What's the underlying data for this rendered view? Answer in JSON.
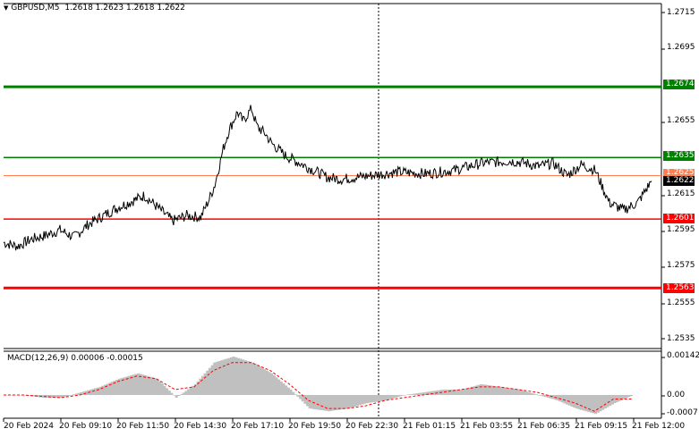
{
  "header": {
    "collapse_icon": "triangle-down-icon",
    "symbol": "GBPUSD,M5",
    "ohlc": "1.2618 1.2623 1.2618 1.2622"
  },
  "price_axis": {
    "ticks": [
      "1.2715",
      "1.2695",
      "1.2655",
      "1.2615",
      "1.2595",
      "1.2575",
      "1.2555",
      "1.2535"
    ],
    "partial_label": "1.2625"
  },
  "levels": {
    "l1": {
      "value": "1.2674",
      "color": "#008000"
    },
    "l2": {
      "value": "1.2635",
      "color": "#008000"
    },
    "l3": {
      "value": "1.2622",
      "color": "#000000"
    },
    "l4": {
      "value": "1.2601",
      "color": "#ff0000"
    },
    "l5": {
      "value": "1.2563",
      "color": "#ff0000"
    }
  },
  "macd": {
    "title": "MACD(12,26,9) 0.00006 -0.00015",
    "ticks": [
      "0.00142",
      "0.00",
      "-0.0007"
    ]
  },
  "time_axis": [
    "20 Feb 2024",
    "20 Feb 09:10",
    "20 Feb 11:50",
    "20 Feb 14:30",
    "20 Feb 17:10",
    "20 Feb 19:50",
    "20 Feb 22:30",
    "21 Feb 01:15",
    "21 Feb 03:55",
    "21 Feb 06:35",
    "21 Feb 09:15",
    "21 Feb 12:00"
  ],
  "chart_data": {
    "type": "line",
    "price": {
      "x_index": [
        0,
        5,
        10,
        15,
        20,
        25,
        30,
        40,
        50,
        60,
        65,
        70,
        73,
        75,
        78,
        80,
        83,
        85,
        88,
        90,
        93,
        95,
        100,
        110,
        115,
        120,
        130,
        140,
        150,
        160,
        170,
        180,
        185,
        190,
        195,
        200,
        205,
        210,
        215,
        220,
        225,
        230
      ],
      "close": [
        1.2588,
        1.2586,
        1.259,
        1.2592,
        1.2595,
        1.2591,
        1.2598,
        1.2607,
        1.2614,
        1.26,
        1.2603,
        1.2602,
        1.2612,
        1.262,
        1.264,
        1.265,
        1.266,
        1.2655,
        1.2662,
        1.2652,
        1.2648,
        1.2643,
        1.2636,
        1.2628,
        1.2624,
        1.2623,
        1.2625,
        1.2627,
        1.2626,
        1.2628,
        1.2632,
        1.2633,
        1.2632,
        1.263,
        1.2632,
        1.2625,
        1.2631,
        1.2628,
        1.261,
        1.2606,
        1.261,
        1.2622
      ]
    },
    "macd": {
      "histogram": [
        0.0,
        0.0,
        -0.0001,
        -0.0001,
        0.0001,
        0.0003,
        0.0006,
        0.0008,
        0.0006,
        -0.0001,
        0.0004,
        0.0012,
        0.00142,
        0.0012,
        0.0008,
        0.0002,
        -0.0005,
        -0.0006,
        -0.0005,
        -0.0003,
        -0.0002,
        0.0,
        0.0001,
        0.0002,
        0.0002,
        0.0004,
        0.0003,
        0.0002,
        0.0,
        -0.0002,
        -0.0005,
        -0.0007,
        -0.0003,
        0.0
      ],
      "signal": [
        0.0,
        0.0,
        -5e-05,
        -0.0001,
        0.0,
        0.0002,
        0.0005,
        0.0007,
        0.0006,
        0.0002,
        0.0003,
        0.0009,
        0.0012,
        0.0012,
        0.0009,
        0.0004,
        -0.0002,
        -0.0005,
        -0.0005,
        -0.0004,
        -0.0002,
        -0.0001,
        0.0,
        0.0001,
        0.0002,
        0.0003,
        0.0003,
        0.0002,
        0.0001,
        -0.0001,
        -0.0003,
        -0.0006,
        -0.00015,
        -0.00015
      ]
    }
  }
}
